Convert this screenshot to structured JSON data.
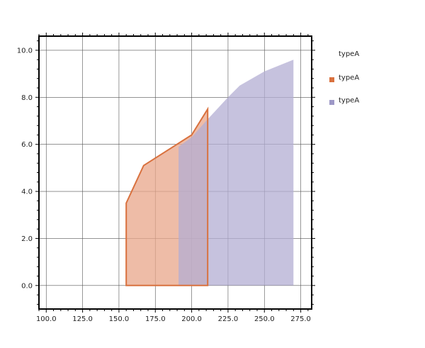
{
  "chart_data": {
    "type": "area",
    "grid": true,
    "xlim": [
      95,
      282.5
    ],
    "ylim": [
      -1.0,
      10.6
    ],
    "xticks": [
      "100.0",
      "125.0",
      "150.0",
      "175.0",
      "200.0",
      "225.0",
      "250.0",
      "275.0"
    ],
    "xtick_values": [
      100,
      125,
      150,
      175,
      200,
      225,
      250,
      275
    ],
    "yticks": [
      "0.0",
      "2.0",
      "4.0",
      "6.0",
      "8.0",
      "10.0"
    ],
    "ytick_values": [
      0,
      2,
      4,
      6,
      8,
      10
    ],
    "legend": {
      "title": "typeA",
      "placement": "right",
      "entries": [
        {
          "label": "typeA",
          "color": "#d9713e"
        },
        {
          "label": "typeA",
          "color": "#9d98c7"
        }
      ]
    },
    "series": [
      {
        "color": "#d9713e",
        "fill": "#e8a58a",
        "outlined": true,
        "points": [
          [
            155,
            0
          ],
          [
            155,
            3.5
          ],
          [
            167,
            5.1
          ],
          [
            200,
            6.4
          ],
          [
            211,
            7.5
          ],
          [
            211,
            0
          ]
        ]
      },
      {
        "color": "#9d98c7",
        "fill": "#b3aed3",
        "outlined": false,
        "points": [
          [
            191,
            0
          ],
          [
            191,
            5.9
          ],
          [
            200,
            6.3
          ],
          [
            210,
            7.0
          ],
          [
            225,
            8.0
          ],
          [
            233,
            8.5
          ],
          [
            250,
            9.1
          ],
          [
            270,
            9.6
          ],
          [
            270,
            0
          ]
        ]
      }
    ]
  }
}
